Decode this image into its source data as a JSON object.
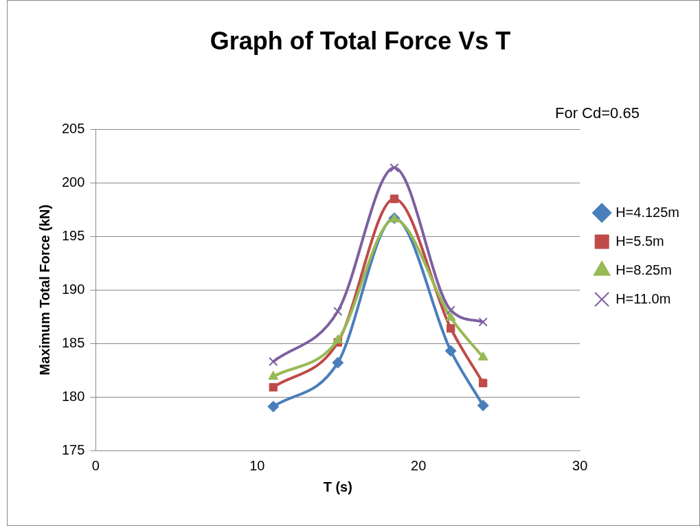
{
  "chart_data": {
    "type": "line",
    "title": "Graph of Total Force Vs T",
    "xlabel": "T (s)",
    "ylabel": "Maximum Total Force (kN)",
    "annotations": [
      "For Cd=0.65"
    ],
    "x": [
      11,
      15,
      18.5,
      22,
      24
    ],
    "series": [
      {
        "name": "H=4.125m",
        "color": "#4a7ebb",
        "marker": "diamond",
        "values": [
          179.1,
          183.2,
          196.7,
          184.3,
          179.2
        ]
      },
      {
        "name": "H=5.5m",
        "color": "#be4b48",
        "marker": "square",
        "values": [
          180.9,
          185.1,
          198.5,
          186.4,
          181.3
        ]
      },
      {
        "name": "H=8.25m",
        "color": "#98b954",
        "marker": "triangle",
        "values": [
          181.9,
          185.3,
          196.6,
          187.4,
          183.7
        ]
      },
      {
        "name": "H=11.0m",
        "color": "#7d60a0",
        "marker": "cross",
        "values": [
          183.3,
          188,
          201.4,
          188.1,
          187
        ]
      }
    ],
    "xlim": [
      0,
      30
    ],
    "xticks": [
      0,
      10,
      20,
      30
    ],
    "ylim": [
      175,
      205
    ],
    "yticks": [
      175,
      180,
      185,
      190,
      195,
      200,
      205
    ],
    "grid": "y",
    "legend": "right",
    "line_style": "solid"
  }
}
